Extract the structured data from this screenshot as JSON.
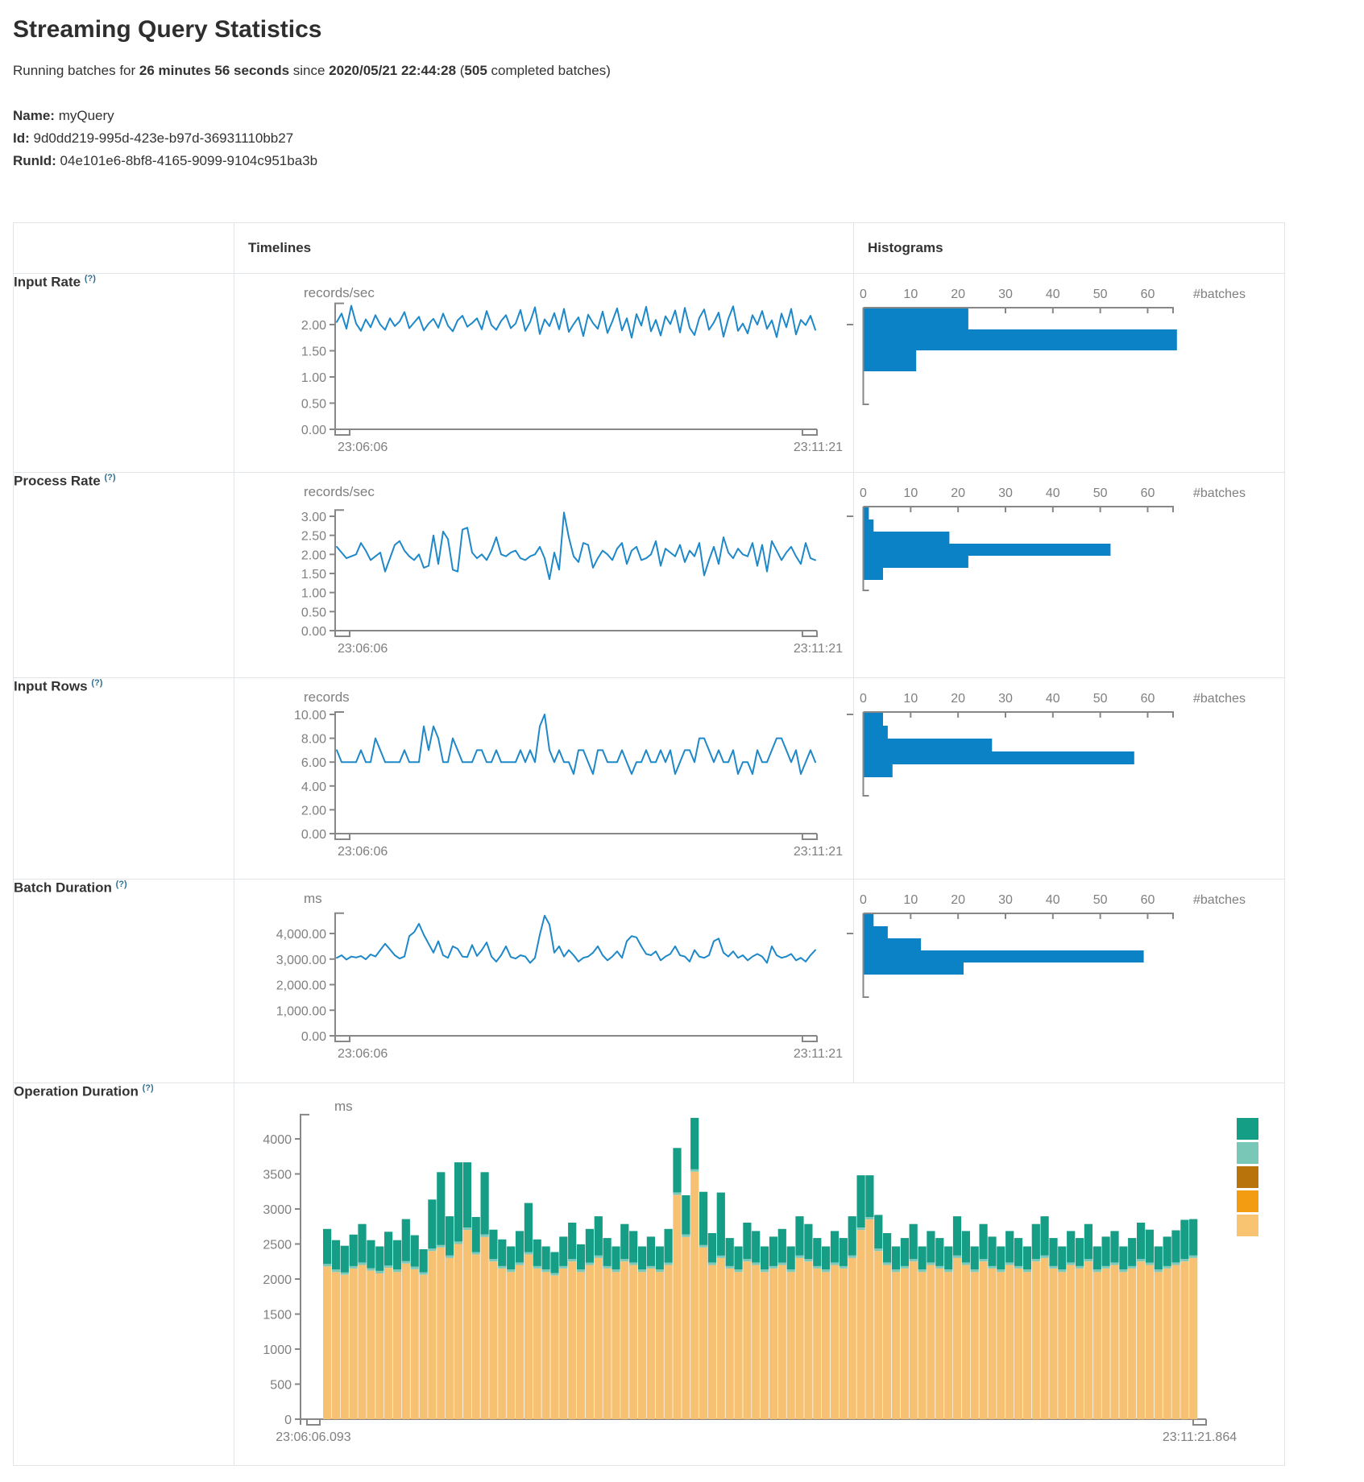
{
  "page": {
    "title": "Streaming Query Statistics",
    "subtitle": {
      "running_prefix": "Running batches for ",
      "duration": "26 minutes 56 seconds",
      "since": " since ",
      "timestamp": "2020/05/21 22:44:28",
      "open_paren": " (",
      "batches_count": "505",
      "suffix": " completed batches)"
    },
    "meta": {
      "name_label": "Name:",
      "name": " myQuery",
      "id_label": "Id:",
      "id": " 9d0dd219-995d-423e-b97d-36931110bb27",
      "runid_label": "RunId:",
      "runid": " 04e101e6-8bf8-4165-9099-9104c951ba3b"
    }
  },
  "table": {
    "col_timelines": "Timelines",
    "col_histograms": "Histograms"
  },
  "rows": [
    {
      "label": "Input Rate",
      "help": "(?)"
    },
    {
      "label": "Process Rate",
      "help": "(?)"
    },
    {
      "label": "Input Rows",
      "help": "(?)"
    },
    {
      "label": "Batch Duration",
      "help": "(?)"
    },
    {
      "label": "Operation Duration",
      "help": "(?)"
    }
  ],
  "chart_data": {
    "timelines": [
      {
        "id": "input-rate",
        "type": "line",
        "unit": "records/sec",
        "x_start": "23:06:06",
        "x_end": "23:11:21",
        "yticks": [
          0,
          0.5,
          1,
          1.5,
          2
        ],
        "ytick_labels": [
          "0.00",
          "0.50",
          "1.00",
          "1.50",
          "2.00"
        ],
        "ylim": [
          0,
          2.36
        ],
        "values": [
          2.05,
          2.21,
          1.92,
          2.36,
          2.02,
          1.88,
          2.1,
          1.95,
          2.18,
          2.0,
          1.9,
          2.12,
          1.97,
          2.06,
          2.24,
          1.93,
          2.04,
          2.15,
          1.89,
          2.02,
          2.11,
          1.94,
          2.21,
          1.98,
          1.87,
          2.08,
          2.17,
          1.96,
          2.03,
          2.12,
          1.91,
          2.26,
          1.99,
          1.9,
          2.07,
          2.18,
          1.93,
          2.02,
          2.28,
          1.88,
          2.05,
          2.33,
          1.82,
          2.1,
          1.97,
          2.22,
          1.91,
          2.3,
          1.86,
          2.01,
          2.14,
          1.78,
          2.19,
          2.03,
          1.92,
          2.25,
          1.84,
          2.06,
          2.31,
          1.89,
          2.12,
          1.75,
          2.2,
          1.98,
          2.34,
          1.87,
          2.09,
          1.79,
          2.16,
          2.01,
          2.27,
          1.85,
          2.32,
          1.94,
          1.8,
          2.13,
          2.29,
          1.9,
          2.04,
          2.23,
          1.77,
          2.11,
          2.35,
          1.88,
          2.02,
          1.83,
          2.18,
          2.0,
          2.26,
          1.92,
          2.08,
          1.76,
          2.21,
          1.95,
          2.3,
          1.81,
          2.09,
          1.99,
          2.17,
          1.9
        ]
      },
      {
        "id": "process-rate",
        "type": "line",
        "unit": "records/sec",
        "x_start": "23:06:06",
        "x_end": "23:11:21",
        "yticks": [
          0,
          0.5,
          1,
          1.5,
          2,
          2.5,
          3
        ],
        "ytick_labels": [
          "0.00",
          "0.50",
          "1.00",
          "1.50",
          "2.00",
          "2.50",
          "3.00"
        ],
        "ylim": [
          0,
          3.1
        ],
        "values": [
          2.2,
          2.05,
          1.9,
          1.95,
          2.0,
          2.3,
          2.1,
          1.85,
          1.95,
          2.05,
          1.55,
          1.9,
          2.25,
          2.35,
          2.1,
          1.95,
          1.85,
          2.0,
          1.65,
          1.7,
          2.5,
          1.75,
          2.6,
          2.4,
          1.6,
          1.55,
          2.65,
          2.7,
          2.05,
          1.9,
          2.0,
          1.85,
          2.1,
          2.45,
          2.0,
          1.95,
          2.05,
          2.1,
          1.9,
          1.85,
          1.95,
          2.0,
          2.2,
          1.9,
          1.35,
          2.05,
          1.6,
          3.1,
          2.45,
          1.95,
          1.8,
          2.3,
          2.25,
          1.65,
          1.9,
          2.1,
          2.0,
          1.85,
          2.15,
          2.3,
          1.75,
          2.1,
          2.2,
          1.85,
          1.9,
          2.0,
          2.35,
          1.7,
          2.15,
          2.05,
          1.95,
          2.25,
          1.8,
          2.1,
          1.95,
          2.3,
          1.45,
          1.85,
          2.2,
          1.75,
          2.45,
          2.05,
          1.9,
          2.15,
          2.0,
          1.95,
          2.3,
          1.7,
          2.25,
          1.55,
          2.35,
          2.1,
          1.85,
          2.05,
          2.2,
          1.95,
          1.75,
          2.3,
          1.9,
          1.85
        ]
      },
      {
        "id": "input-rows",
        "type": "line",
        "unit": "records",
        "x_start": "23:06:06",
        "x_end": "23:11:21",
        "yticks": [
          0,
          2,
          4,
          6,
          8,
          10
        ],
        "ytick_labels": [
          "0.00",
          "2.00",
          "4.00",
          "6.00",
          "8.00",
          "10.00"
        ],
        "ylim": [
          0,
          10
        ],
        "values": [
          7,
          6,
          6,
          6,
          6,
          7,
          6,
          6,
          8,
          7,
          6,
          6,
          6,
          6,
          7,
          6,
          6,
          6,
          9,
          7,
          9,
          8,
          6,
          6,
          8,
          7,
          6,
          6,
          6,
          7,
          7,
          6,
          6,
          7,
          6,
          6,
          6,
          6,
          7,
          6,
          7,
          6,
          9,
          10,
          7,
          6,
          7,
          6,
          6,
          5,
          7,
          7,
          6,
          5,
          7,
          7,
          6,
          6,
          6,
          7,
          6,
          5,
          6,
          6,
          7,
          6,
          6,
          7,
          6,
          7,
          5,
          6,
          7,
          7,
          6,
          8,
          8,
          7,
          6,
          7,
          6,
          6,
          7,
          5,
          6,
          6,
          5,
          7,
          6,
          6,
          7,
          8,
          8,
          7,
          6,
          7,
          5,
          6,
          7,
          6
        ]
      },
      {
        "id": "batch-duration",
        "type": "line",
        "unit": "ms",
        "x_start": "23:06:06",
        "x_end": "23:11:21",
        "yticks": [
          0,
          1000,
          2000,
          3000,
          4000
        ],
        "ytick_labels": [
          "0.00",
          "1,000.00",
          "2,000.00",
          "3,000.00",
          "4,000.00"
        ],
        "ylim": [
          0,
          4700
        ],
        "values": [
          3050,
          3150,
          2980,
          3100,
          3060,
          3120,
          2990,
          3180,
          3100,
          3350,
          3600,
          3380,
          3150,
          3020,
          3100,
          3900,
          4050,
          4380,
          3950,
          3600,
          3250,
          3700,
          3150,
          3050,
          3500,
          3400,
          3100,
          3080,
          3550,
          3120,
          3350,
          3650,
          3100,
          2900,
          3150,
          3500,
          3080,
          3020,
          3150,
          3100,
          2850,
          3050,
          3950,
          4700,
          4350,
          3250,
          3500,
          3100,
          3350,
          3150,
          2900,
          3050,
          3100,
          3250,
          3500,
          3150,
          2950,
          3100,
          3300,
          3050,
          3700,
          3900,
          3850,
          3500,
          3200,
          3150,
          3300,
          2950,
          3100,
          3200,
          3500,
          3150,
          3100,
          2900,
          3350,
          3100,
          3050,
          3150,
          3700,
          3800,
          3250,
          3100,
          3300,
          3050,
          3150,
          2950,
          3100,
          3200,
          3100,
          2850,
          3500,
          3150,
          3050,
          3100,
          3200,
          2950,
          3050,
          2900,
          3150,
          3350
        ]
      }
    ],
    "histograms": [
      {
        "id": "input-rate",
        "type": "bar",
        "xticks": [
          0,
          10,
          20,
          30,
          40,
          50,
          60
        ],
        "xlabel": "#batches",
        "bins": [
          22,
          66,
          11
        ]
      },
      {
        "id": "process-rate",
        "type": "bar",
        "xticks": [
          0,
          10,
          20,
          30,
          40,
          50,
          60
        ],
        "xlabel": "#batches",
        "bins": [
          1,
          2,
          18,
          52,
          22,
          4
        ]
      },
      {
        "id": "input-rows",
        "type": "bar",
        "xticks": [
          0,
          10,
          20,
          30,
          40,
          50,
          60
        ],
        "xlabel": "#batches",
        "bins": [
          4,
          5,
          27,
          57,
          6
        ]
      },
      {
        "id": "batch-duration",
        "type": "bar",
        "xticks": [
          0,
          10,
          20,
          30,
          40,
          50,
          60
        ],
        "xlabel": "#batches",
        "bins": [
          2,
          5,
          12,
          59,
          21
        ]
      }
    ],
    "operation_duration": {
      "id": "operation-duration",
      "type": "stacked-bar",
      "unit": "ms",
      "x_start": "23:06:06.093",
      "x_end": "23:11:21.864",
      "yticks": [
        0,
        500,
        1000,
        1500,
        2000,
        2500,
        3000,
        3500,
        4000
      ],
      "ytick_labels": [
        "0",
        "500",
        "1000",
        "1500",
        "2000",
        "2500",
        "3000",
        "3500",
        "4000"
      ],
      "ylim": [
        0,
        4300
      ],
      "legend_colors": [
        "#149e86",
        "#79c7b7",
        "#b8740a",
        "#f39c12",
        "#f8c471"
      ],
      "series": [
        {
          "name": "bottom-segment",
          "color": "#f7c173",
          "values": [
            2180,
            2100,
            2060,
            2150,
            2200,
            2120,
            2080,
            2160,
            2100,
            2220,
            2140,
            2060,
            2400,
            2450,
            2300,
            2500,
            2700,
            2350,
            2600,
            2250,
            2150,
            2100,
            2200,
            2350,
            2150,
            2100,
            2050,
            2150,
            2250,
            2100,
            2200,
            2300,
            2150,
            2100,
            2250,
            2200,
            2100,
            2150,
            2100,
            2200,
            3200,
            2600,
            3530,
            2450,
            2200,
            2300,
            2150,
            2100,
            2250,
            2200,
            2100,
            2150,
            2200,
            2100,
            2300,
            2250,
            2150,
            2100,
            2200,
            2150,
            2300,
            2700,
            2850,
            2400,
            2200,
            2100,
            2150,
            2250,
            2100,
            2200,
            2150,
            2100,
            2300,
            2200,
            2100,
            2250,
            2150,
            2100,
            2200,
            2150,
            2100,
            2250,
            2300,
            2150,
            2100,
            2200,
            2150,
            2250,
            2100,
            2150,
            2200,
            2100,
            2150,
            2250,
            2200,
            2100,
            2150,
            2200,
            2250,
            2300
          ]
        },
        {
          "name": "middle-separator",
          "color": "#7dc9b9",
          "constant_value": 35
        },
        {
          "name": "top-segment",
          "color": "#169d86",
          "values": [
            500,
            420,
            380,
            450,
            550,
            400,
            350,
            480,
            420,
            600,
            450,
            330,
            700,
            1040,
            560,
            1130,
            930,
            500,
            890,
            420,
            380,
            330,
            450,
            700,
            380,
            330,
            300,
            420,
            520,
            360,
            480,
            560,
            400,
            330,
            500,
            450,
            330,
            420,
            330,
            480,
            635,
            560,
            735,
            760,
            420,
            900,
            400,
            330,
            520,
            450,
            330,
            420,
            480,
            330,
            560,
            500,
            400,
            330,
            450,
            400,
            560,
            745,
            595,
            480,
            420,
            330,
            400,
            500,
            330,
            450,
            400,
            330,
            560,
            450,
            330,
            500,
            420,
            330,
            450,
            400,
            330,
            500,
            560,
            400,
            330,
            450,
            400,
            500,
            330,
            420,
            450,
            330,
            400,
            520,
            470,
            330,
            420,
            460,
            560,
            520
          ]
        }
      ]
    }
  }
}
